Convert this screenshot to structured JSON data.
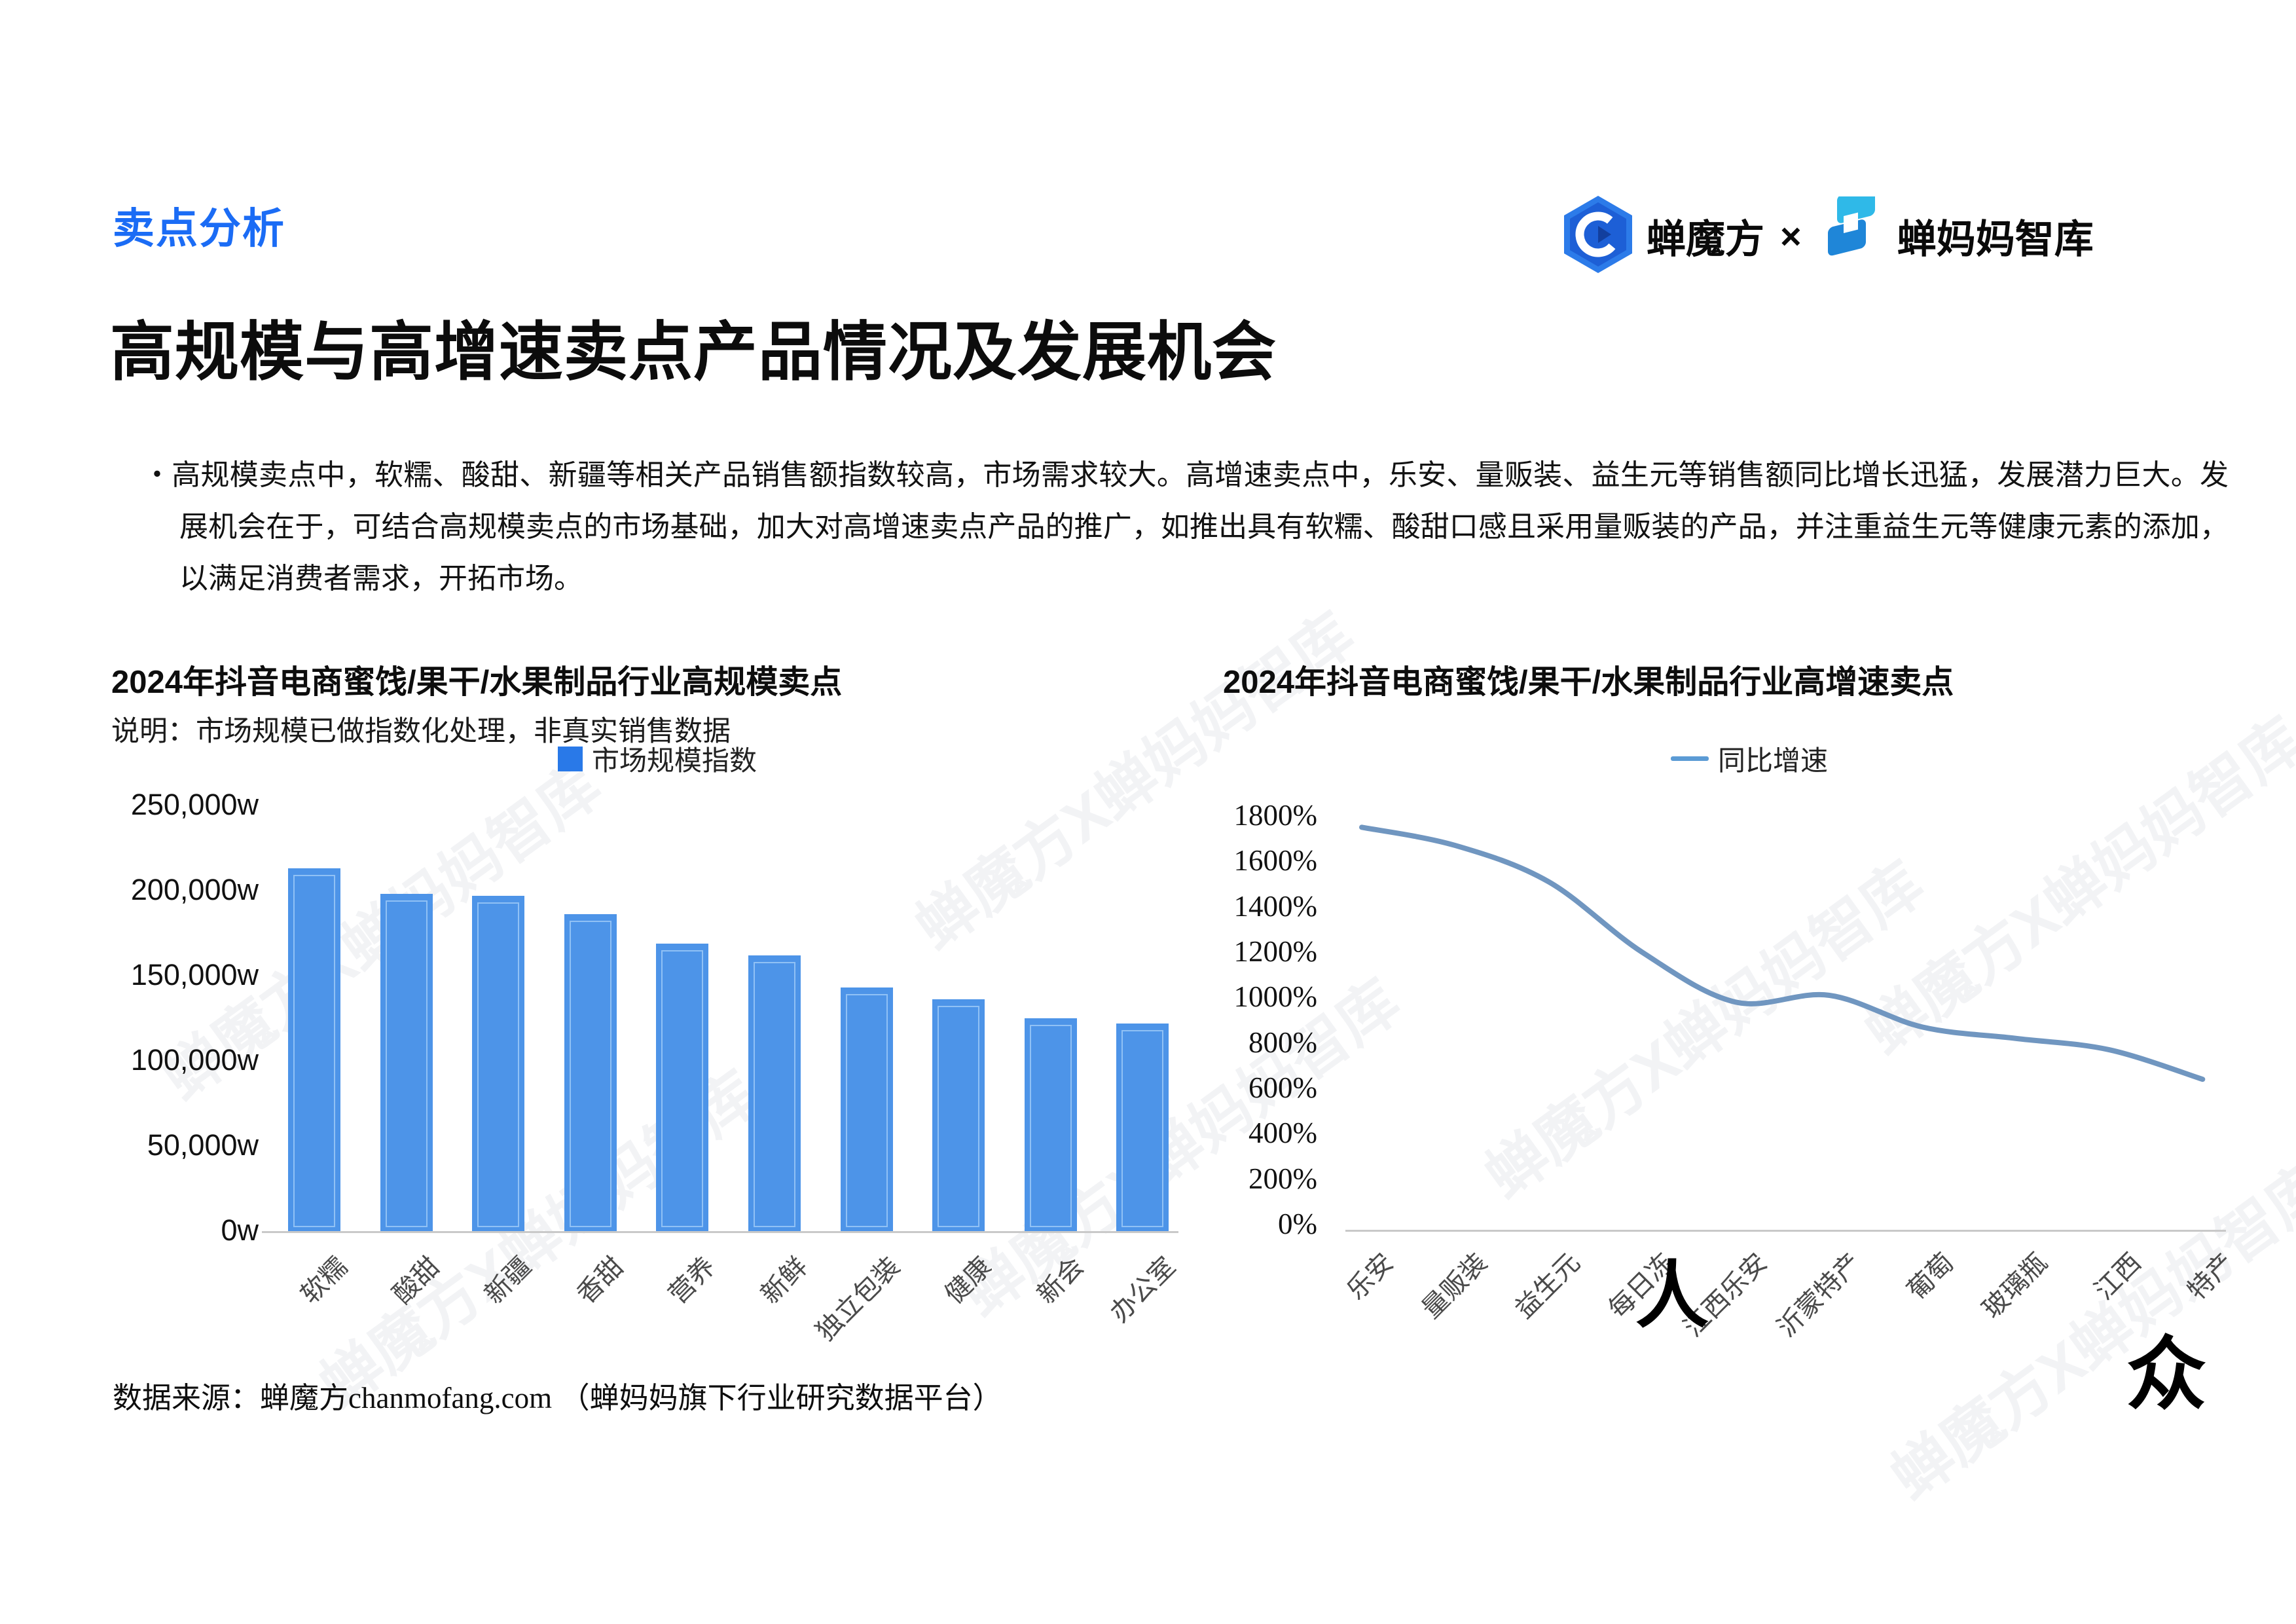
{
  "header": {
    "section_label": "卖点分析",
    "title": "高规模与高增速卖点产品情况及发展机会",
    "bullet_char": "・",
    "bullet_text": "高规模卖点中，软糯、酸甜、新疆等相关产品销售额指数较高，市场需求较大。高增速卖点中，乐安、量贩装、益生元等销售额同比增长迅猛，发展潜力巨大。发展机会在于，可结合高规模卖点的市场基础，加大对高增速卖点产品的推广，如推出具有软糯、酸甜口感且采用量贩装的产品，并注重益生元等健康元素的添加，以满足消费者需求，开拓市场。",
    "brand_left": "蝉魔方",
    "brand_sep": "×",
    "brand_right": "蝉妈妈智库"
  },
  "colors": {
    "accent_blue": "#1b6cf5",
    "bar_blue": "#4d94e8",
    "legend_square_blue": "#2979e8",
    "line_blue": "#7096c0",
    "legend_line_blue": "#5b9bd5",
    "axis_gray": "#c9c9c9"
  },
  "watermark_text": "蝉魔方X蝉妈妈智库",
  "overlay_glyphs": {
    "g1": "人",
    "g2": "众"
  },
  "footer": {
    "text_cn": "数据来源：蝉魔方",
    "text_en": "chanmofang.com",
    "text_suffix": " （蝉妈妈旗下行业研究数据平台）"
  },
  "chart_data": [
    {
      "type": "bar",
      "title": "2024年抖音电商蜜饯/果干/水果制品行业高规模卖点",
      "note": "说明：市场规模已做指数化处理，非真实销售数据",
      "legend": "市场规模指数",
      "categories": [
        "软糯",
        "酸甜",
        "新疆",
        "香甜",
        "营养",
        "新鲜",
        "独立包装",
        "健康",
        "新会",
        "办公室"
      ],
      "values": [
        213000,
        198000,
        197000,
        186000,
        169000,
        162000,
        143000,
        136000,
        125000,
        122000
      ],
      "unit": "w",
      "ylim": [
        0,
        250000
      ],
      "yticks": [
        "250,000w",
        "200,000w",
        "150,000w",
        "100,000w",
        "50,000w",
        "0w"
      ],
      "grid": false,
      "legend_position": "top",
      "bar_color": "#4d94e8"
    },
    {
      "type": "line",
      "title": "2024年抖音电商蜜饯/果干/水果制品行业高增速卖点",
      "legend": "同比增速",
      "categories": [
        "乐安",
        "量贩装",
        "益生元",
        "每日冻",
        "江西乐安",
        "沂蒙特产",
        "葡萄",
        "玻璃瓶",
        "江西",
        "特产"
      ],
      "values": [
        1750,
        1670,
        1510,
        1200,
        980,
        1010,
        870,
        820,
        770,
        640
      ],
      "unit": "%",
      "ylim": [
        0,
        1800
      ],
      "yticks": [
        "1800%",
        "1600%",
        "1400%",
        "1200%",
        "1000%",
        "800%",
        "600%",
        "400%",
        "200%",
        "0%"
      ],
      "grid": false,
      "legend_position": "top",
      "line_color": "#7096c0"
    }
  ]
}
